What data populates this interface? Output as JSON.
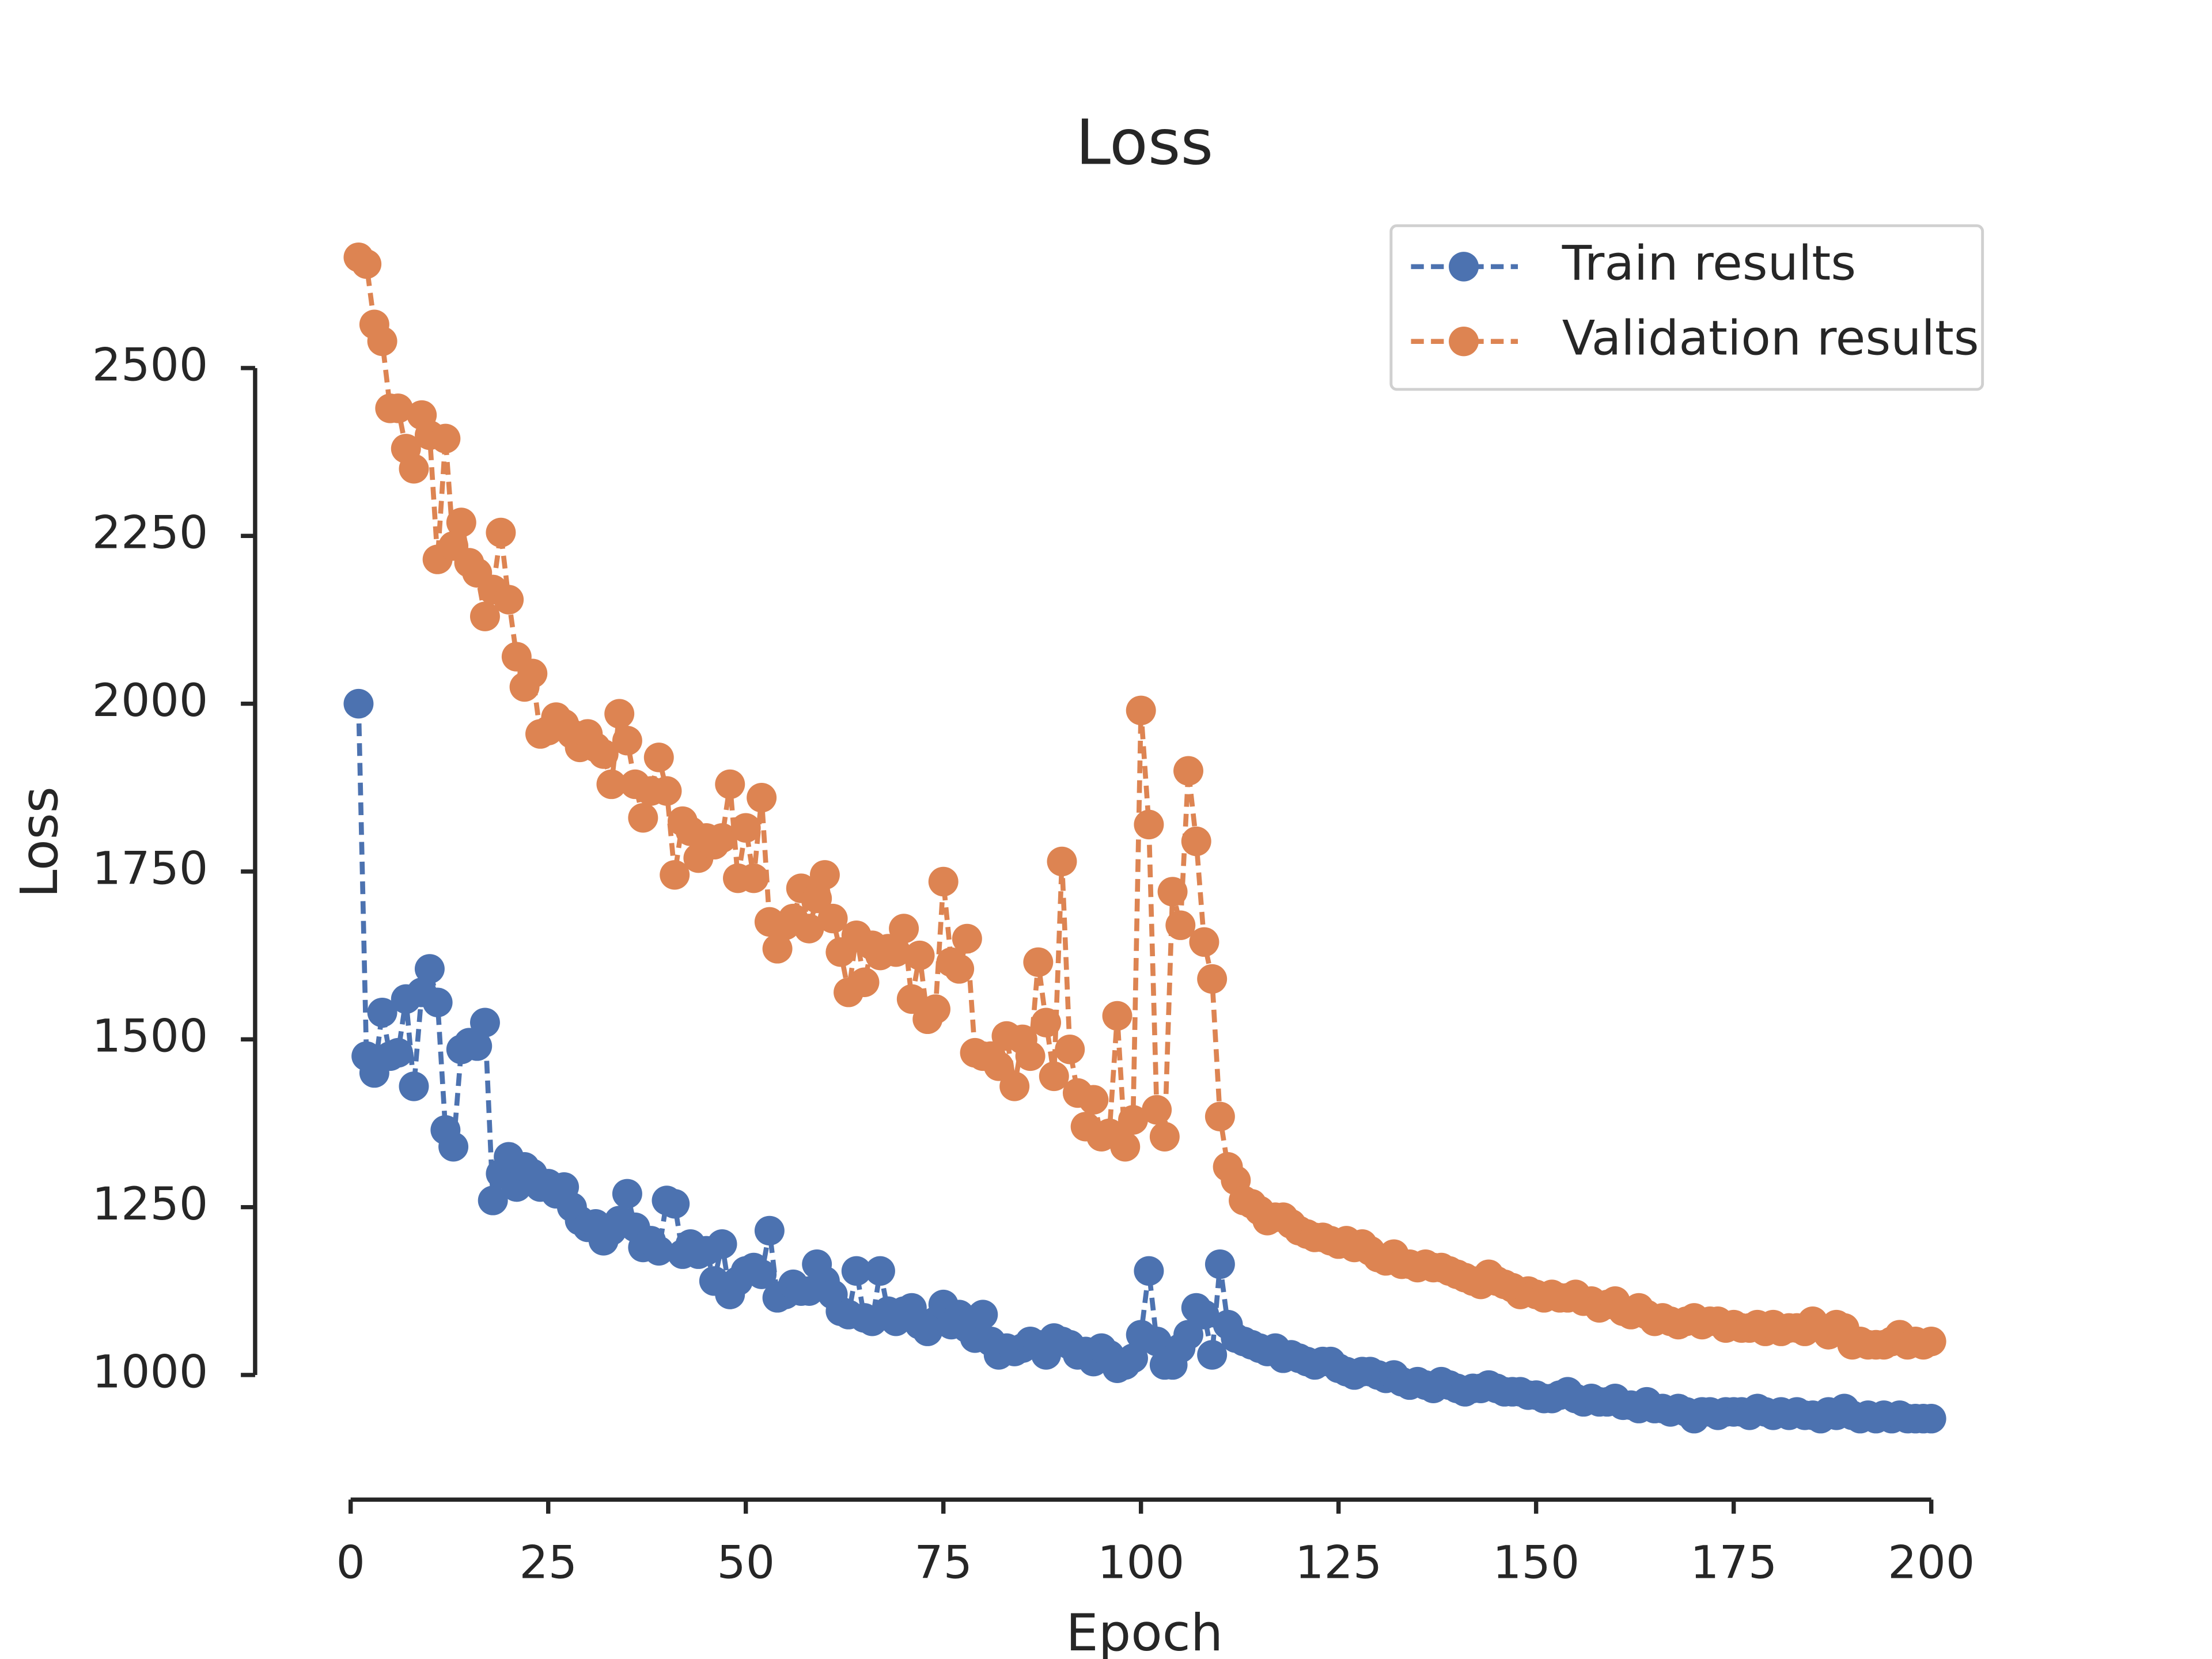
{
  "chart_data": {
    "type": "line",
    "title": "Loss",
    "xlabel": "Epoch",
    "ylabel": "Loss",
    "x": [
      1,
      2,
      3,
      4,
      5,
      6,
      7,
      8,
      9,
      10,
      11,
      12,
      13,
      14,
      15,
      16,
      17,
      18,
      19,
      20,
      21,
      22,
      23,
      24,
      25,
      26,
      27,
      28,
      29,
      30,
      31,
      32,
      33,
      34,
      35,
      36,
      37,
      38,
      39,
      40,
      41,
      42,
      43,
      44,
      45,
      46,
      47,
      48,
      49,
      50,
      51,
      52,
      53,
      54,
      55,
      56,
      57,
      58,
      59,
      60,
      61,
      62,
      63,
      64,
      65,
      66,
      67,
      68,
      69,
      70,
      71,
      72,
      73,
      74,
      75,
      76,
      77,
      78,
      79,
      80,
      81,
      82,
      83,
      84,
      85,
      86,
      87,
      88,
      89,
      90,
      91,
      92,
      93,
      94,
      95,
      96,
      97,
      98,
      99,
      100,
      101,
      102,
      103,
      104,
      105,
      106,
      107,
      108,
      109,
      110,
      111,
      112,
      113,
      114,
      115,
      116,
      117,
      118,
      119,
      120,
      121,
      122,
      123,
      124,
      125,
      126,
      127,
      128,
      129,
      130,
      131,
      132,
      133,
      134,
      135,
      136,
      137,
      138,
      139,
      140,
      141,
      142,
      143,
      144,
      145,
      146,
      147,
      148,
      149,
      150,
      151,
      152,
      153,
      154,
      155,
      156,
      157,
      158,
      159,
      160,
      161,
      162,
      163,
      164,
      165,
      166,
      167,
      168,
      169,
      170,
      171,
      172,
      173,
      174,
      175,
      176,
      177,
      178,
      179,
      180,
      181,
      182,
      183,
      184,
      185,
      186,
      187,
      188,
      189,
      190,
      191,
      192,
      193,
      194,
      195,
      196,
      197,
      198,
      199,
      200
    ],
    "series": [
      {
        "name": "Train results",
        "color": "#4c72b0",
        "values": [
          2000,
          1475,
          1450,
          1540,
          1475,
          1480,
          1560,
          1430,
          1570,
          1605,
          1555,
          1365,
          1340,
          1485,
          1495,
          1490,
          1525,
          1260,
          1300,
          1325,
          1280,
          1310,
          1300,
          1280,
          1285,
          1270,
          1280,
          1250,
          1230,
          1220,
          1225,
          1200,
          1215,
          1230,
          1270,
          1220,
          1190,
          1200,
          1185,
          1260,
          1255,
          1180,
          1195,
          1180,
          1185,
          1140,
          1195,
          1120,
          1140,
          1155,
          1160,
          1150,
          1215,
          1115,
          1120,
          1135,
          1125,
          1125,
          1165,
          1140,
          1120,
          1095,
          1090,
          1155,
          1085,
          1080,
          1155,
          1095,
          1080,
          1095,
          1100,
          1075,
          1065,
          1080,
          1105,
          1075,
          1090,
          1070,
          1055,
          1090,
          1050,
          1030,
          1040,
          1035,
          1040,
          1050,
          1045,
          1030,
          1055,
          1050,
          1045,
          1030,
          1035,
          1020,
          1040,
          1030,
          1010,
          1015,
          1025,
          1060,
          1155,
          1050,
          1015,
          1015,
          1040,
          1060,
          1100,
          1090,
          1030,
          1165,
          1075,
          1055,
          1050,
          1045,
          1040,
          1035,
          1040,
          1025,
          1030,
          1025,
          1020,
          1015,
          1020,
          1020,
          1010,
          1005,
          1000,
          1005,
          1005,
          1000,
          995,
          1000,
          990,
          985,
          990,
          985,
          980,
          990,
          985,
          980,
          975,
          980,
          980,
          985,
          980,
          975,
          975,
          975,
          970,
          970,
          965,
          965,
          970,
          975,
          965,
          960,
          965,
          960,
          960,
          965,
          955,
          955,
          950,
          960,
          950,
          950,
          945,
          950,
          945,
          935,
          945,
          945,
          940,
          945,
          945,
          945,
          940,
          950,
          945,
          940,
          945,
          940,
          945,
          940,
          940,
          935,
          945,
          940,
          950,
          940,
          935,
          940,
          935,
          940,
          935,
          940,
          935,
          935,
          935,
          935
        ]
      },
      {
        "name": "Validation results",
        "color": "#dd8452",
        "values": [
          2665,
          2655,
          2565,
          2540,
          2440,
          2440,
          2380,
          2350,
          2430,
          2400,
          2215,
          2395,
          2235,
          2270,
          2210,
          2195,
          2130,
          2170,
          2255,
          2155,
          2070,
          2025,
          2045,
          1955,
          1960,
          1980,
          1970,
          1955,
          1935,
          1955,
          1935,
          1925,
          1880,
          1985,
          1945,
          1880,
          1830,
          1870,
          1920,
          1870,
          1745,
          1825,
          1810,
          1770,
          1800,
          1790,
          1800,
          1880,
          1740,
          1815,
          1740,
          1860,
          1675,
          1635,
          1670,
          1680,
          1725,
          1665,
          1710,
          1745,
          1680,
          1630,
          1570,
          1655,
          1585,
          1640,
          1625,
          1635,
          1630,
          1665,
          1560,
          1625,
          1530,
          1545,
          1735,
          1615,
          1605,
          1650,
          1480,
          1475,
          1475,
          1460,
          1505,
          1430,
          1500,
          1475,
          1615,
          1525,
          1445,
          1765,
          1485,
          1420,
          1370,
          1410,
          1355,
          1360,
          1535,
          1340,
          1380,
          1990,
          1820,
          1395,
          1355,
          1720,
          1670,
          1900,
          1795,
          1645,
          1590,
          1385,
          1310,
          1290,
          1260,
          1255,
          1245,
          1230,
          1235,
          1235,
          1225,
          1215,
          1210,
          1205,
          1205,
          1200,
          1195,
          1200,
          1190,
          1195,
          1185,
          1175,
          1170,
          1180,
          1165,
          1165,
          1160,
          1165,
          1160,
          1160,
          1155,
          1150,
          1145,
          1140,
          1135,
          1150,
          1140,
          1135,
          1130,
          1120,
          1125,
          1120,
          1115,
          1120,
          1115,
          1115,
          1120,
          1110,
          1110,
          1100,
          1105,
          1110,
          1095,
          1090,
          1100,
          1090,
          1080,
          1085,
          1080,
          1075,
          1080,
          1085,
          1075,
          1080,
          1080,
          1070,
          1075,
          1070,
          1070,
          1075,
          1065,
          1075,
          1065,
          1070,
          1070,
          1065,
          1080,
          1070,
          1060,
          1075,
          1070,
          1045,
          1050,
          1045,
          1045,
          1045,
          1050,
          1060,
          1045,
          1050,
          1045,
          1050
        ]
      }
    ],
    "xlim": [
      -8.95,
      209.95
    ],
    "xticks": [
      0,
      25,
      50,
      75,
      100,
      125,
      150,
      175,
      200
    ],
    "ylim": [
      848,
      2752
    ],
    "yticks": [
      1000,
      1250,
      1500,
      1750,
      2000,
      2250,
      2500
    ],
    "line_style": "dashed",
    "marker": "circle",
    "legend": "upper right"
  }
}
